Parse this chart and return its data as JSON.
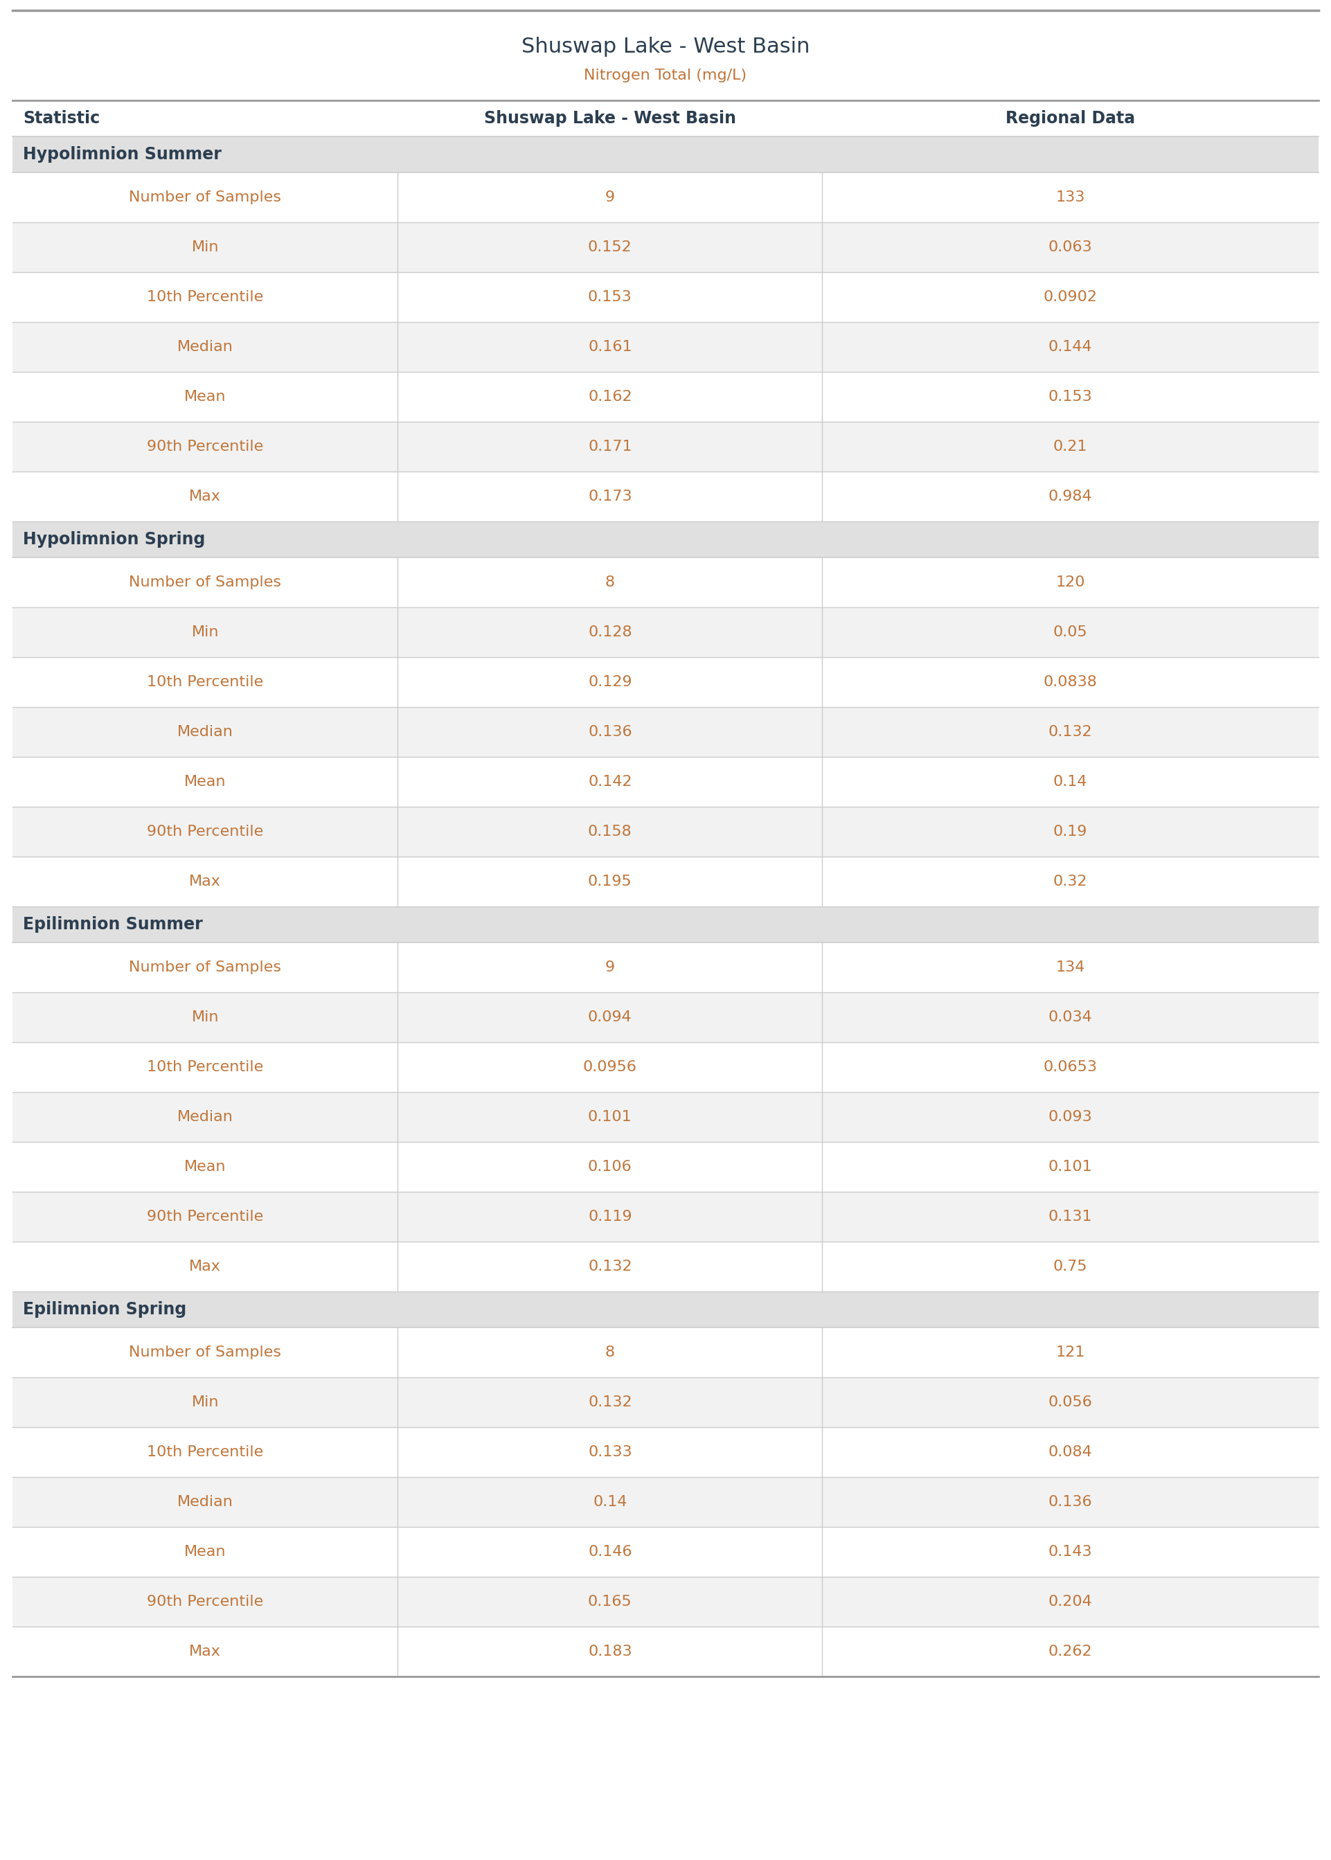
{
  "title": "Shuswap Lake - West Basin",
  "subtitle": "Nitrogen Total (mg/L)",
  "col_headers": [
    "Statistic",
    "Shuswap Lake - West Basin",
    "Regional Data"
  ],
  "sections": [
    {
      "name": "Hypolimnion Summer",
      "rows": [
        [
          "Number of Samples",
          "9",
          "133"
        ],
        [
          "Min",
          "0.152",
          "0.063"
        ],
        [
          "10th Percentile",
          "0.153",
          "0.0902"
        ],
        [
          "Median",
          "0.161",
          "0.144"
        ],
        [
          "Mean",
          "0.162",
          "0.153"
        ],
        [
          "90th Percentile",
          "0.171",
          "0.21"
        ],
        [
          "Max",
          "0.173",
          "0.984"
        ]
      ]
    },
    {
      "name": "Hypolimnion Spring",
      "rows": [
        [
          "Number of Samples",
          "8",
          "120"
        ],
        [
          "Min",
          "0.128",
          "0.05"
        ],
        [
          "10th Percentile",
          "0.129",
          "0.0838"
        ],
        [
          "Median",
          "0.136",
          "0.132"
        ],
        [
          "Mean",
          "0.142",
          "0.14"
        ],
        [
          "90th Percentile",
          "0.158",
          "0.19"
        ],
        [
          "Max",
          "0.195",
          "0.32"
        ]
      ]
    },
    {
      "name": "Epilimnion Summer",
      "rows": [
        [
          "Number of Samples",
          "9",
          "134"
        ],
        [
          "Min",
          "0.094",
          "0.034"
        ],
        [
          "10th Percentile",
          "0.0956",
          "0.0653"
        ],
        [
          "Median",
          "0.101",
          "0.093"
        ],
        [
          "Mean",
          "0.106",
          "0.101"
        ],
        [
          "90th Percentile",
          "0.119",
          "0.131"
        ],
        [
          "Max",
          "0.132",
          "0.75"
        ]
      ]
    },
    {
      "name": "Epilimnion Spring",
      "rows": [
        [
          "Number of Samples",
          "8",
          "121"
        ],
        [
          "Min",
          "0.132",
          "0.056"
        ],
        [
          "10th Percentile",
          "0.133",
          "0.084"
        ],
        [
          "Median",
          "0.14",
          "0.136"
        ],
        [
          "Mean",
          "0.146",
          "0.143"
        ],
        [
          "90th Percentile",
          "0.165",
          "0.204"
        ],
        [
          "Max",
          "0.183",
          "0.262"
        ]
      ]
    }
  ],
  "title_color": "#2c3e50",
  "subtitle_color": "#c0763b",
  "header_text_color": "#2c3e50",
  "section_header_bg": "#e0e0e0",
  "section_header_text_color": "#2c3e50",
  "data_text_color": "#c0763b",
  "alt_row_bg": "#f2f2f2",
  "divider_color": "#cccccc",
  "top_border_color": "#999999",
  "fig_bg_color": "#ffffff",
  "col_splits": [
    0.295,
    0.62
  ],
  "title_fontsize": 22,
  "subtitle_fontsize": 16,
  "col_header_fontsize": 17,
  "section_header_fontsize": 17,
  "data_fontsize": 16
}
